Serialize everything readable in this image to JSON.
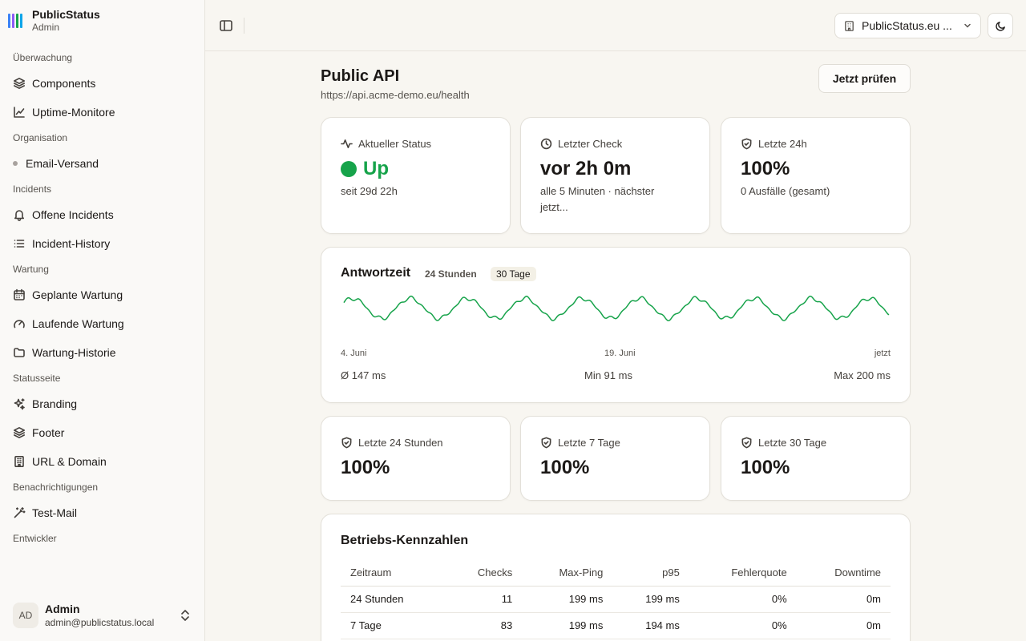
{
  "brand": {
    "title": "PublicStatus",
    "subtitle": "Admin",
    "logo_colors": [
      "#3b82f6",
      "#8b5cf6",
      "#16a34a",
      "#0ea5e9"
    ]
  },
  "sidebar": {
    "groups": [
      {
        "label": "Überwachung",
        "items": [
          {
            "label": "Components",
            "icon": "layers-icon"
          },
          {
            "label": "Uptime-Monitore",
            "icon": "line-chart-icon"
          }
        ]
      },
      {
        "label": "Organisation",
        "items": [
          {
            "label": "Email-Versand",
            "icon": "dot-icon"
          }
        ]
      },
      {
        "label": "Incidents",
        "items": [
          {
            "label": "Offene Incidents",
            "icon": "bell-icon"
          },
          {
            "label": "Incident-History",
            "icon": "list-icon"
          }
        ]
      },
      {
        "label": "Wartung",
        "items": [
          {
            "label": "Geplante Wartung",
            "icon": "calendar-icon"
          },
          {
            "label": "Laufende Wartung",
            "icon": "gauge-icon"
          },
          {
            "label": "Wartung-Historie",
            "icon": "folder-icon"
          }
        ]
      },
      {
        "label": "Statusseite",
        "items": [
          {
            "label": "Branding",
            "icon": "sparkles-icon"
          },
          {
            "label": "Footer",
            "icon": "layers-icon"
          },
          {
            "label": "URL & Domain",
            "icon": "building-icon"
          }
        ]
      },
      {
        "label": "Benachrichtigungen",
        "items": [
          {
            "label": "Test-Mail",
            "icon": "wand-icon"
          }
        ]
      },
      {
        "label": "Entwickler",
        "items": []
      }
    ]
  },
  "user": {
    "initials": "AD",
    "name": "Admin",
    "email": "admin@publicstatus.local"
  },
  "topbar": {
    "tenant": "PublicStatus.eu ..."
  },
  "monitor": {
    "title": "Public API",
    "url": "https://api.acme-demo.eu/health",
    "check_button": "Jetzt prüfen"
  },
  "stats": [
    {
      "label": "Aktueller Status",
      "icon": "activity-icon",
      "value": "Up",
      "sub": "seit 29d 22h",
      "color": "#16a34a"
    },
    {
      "label": "Letzter Check",
      "icon": "clock-icon",
      "value": "vor 2h 0m",
      "sub": "alle 5 Minuten · nächster jetzt..."
    },
    {
      "label": "Letzte 24h",
      "icon": "shield-check-icon",
      "value": "100%",
      "sub": "0 Ausfälle (gesamt)"
    }
  ],
  "chart": {
    "title": "Antwortzeit",
    "tabs": [
      "24 Stunden",
      "30 Tage"
    ],
    "active_tab": "30 Tage",
    "x_labels": [
      "4. Juni",
      "19. Juni",
      "jetzt"
    ],
    "avg": "Ø 147 ms",
    "min": "Min 91 ms",
    "max": "Max 200 ms",
    "line_color": "#16a34a"
  },
  "chart_data": {
    "type": "line",
    "title": "Antwortzeit",
    "x": [
      0,
      1,
      2,
      3,
      4,
      5,
      6,
      7,
      8,
      9,
      10,
      11,
      12,
      13,
      14,
      15,
      16,
      17,
      18,
      19,
      20,
      21,
      22,
      23,
      24,
      25,
      26,
      27,
      28,
      29,
      30,
      31,
      32,
      33,
      34,
      35,
      36,
      37,
      38,
      39,
      40,
      41,
      42,
      43,
      44,
      45,
      46,
      47,
      48,
      49,
      50,
      51,
      52,
      53,
      54,
      55,
      56,
      57,
      58,
      59,
      60,
      61,
      62,
      63,
      64,
      65,
      66,
      67,
      68,
      69,
      70,
      71,
      72,
      73,
      74,
      75,
      76,
      77,
      78,
      79,
      80,
      81,
      82,
      83,
      84,
      85,
      86,
      87,
      88,
      89,
      90,
      91,
      92,
      93,
      94,
      95,
      96,
      97,
      98,
      99,
      100,
      101,
      102,
      103,
      104,
      105,
      106,
      107,
      108,
      109,
      110,
      111,
      112,
      113,
      114,
      115,
      116,
      117,
      118,
      119,
      120,
      121,
      122,
      123,
      124,
      125,
      126,
      127,
      128,
      129,
      130,
      131,
      132,
      133,
      134,
      135,
      136,
      137,
      138,
      139,
      140,
      141,
      142,
      143,
      144,
      145,
      146,
      147,
      148,
      149,
      150,
      151,
      152,
      153,
      154,
      155,
      156,
      157,
      158,
      159,
      160,
      161,
      162,
      163,
      164,
      165,
      166,
      167,
      168,
      169,
      170,
      171,
      172,
      173,
      174,
      175,
      176,
      177,
      178,
      179,
      180,
      181,
      182,
      183,
      184,
      185,
      186,
      187,
      188,
      189,
      190,
      191,
      192,
      193,
      194,
      195,
      196,
      197,
      198,
      199,
      200,
      201,
      202,
      203,
      204,
      205,
      206,
      207,
      208,
      209,
      210,
      211,
      212,
      213,
      214,
      215,
      216,
      217,
      218,
      219,
      220,
      221,
      222,
      223,
      224,
      225,
      226,
      227,
      228,
      229,
      230,
      231,
      232,
      233,
      234,
      235,
      236,
      237,
      238,
      239,
      240,
      241,
      242,
      243,
      244,
      245,
      246,
      247,
      248,
      249,
      250,
      251,
      252,
      253,
      254,
      255,
      256,
      257,
      258,
      259,
      260,
      261,
      262,
      263,
      264,
      265,
      266,
      267,
      268,
      269,
      270,
      271,
      272,
      273,
      274,
      275,
      276,
      277,
      278,
      279,
      280,
      281,
      282,
      283,
      284,
      285,
      286,
      287,
      288,
      289,
      290,
      291,
      292,
      293,
      294,
      295,
      296,
      297,
      298,
      299,
      300,
      301,
      302,
      303,
      304,
      305,
      306,
      307,
      308,
      309,
      310,
      311,
      312,
      313,
      314,
      315,
      316,
      317,
      318,
      319,
      320,
      321,
      322,
      323,
      324,
      325,
      326,
      327,
      328,
      329,
      330,
      331,
      332,
      333,
      334,
      335,
      336,
      337,
      338,
      339,
      340,
      341,
      342,
      343,
      344,
      345,
      346,
      347,
      348,
      349,
      350,
      351,
      352,
      353,
      354,
      355,
      356,
      357,
      358,
      359,
      360,
      361,
      362,
      363,
      364,
      365,
      366,
      367,
      368,
      369,
      370,
      371,
      372,
      373,
      374,
      375,
      376,
      377,
      378,
      379,
      380,
      381,
      382,
      383,
      384,
      385,
      386,
      387,
      388,
      389,
      390,
      391,
      392,
      393,
      394,
      395,
      396,
      397,
      398,
      399,
      400,
      401,
      402,
      403,
      404,
      405,
      406,
      407,
      408,
      409,
      410,
      411,
      412,
      413,
      414,
      415,
      416,
      417,
      418,
      419,
      420,
      421,
      422,
      423,
      424,
      425,
      426,
      427,
      428,
      429,
      430,
      431,
      432,
      433,
      434,
      435,
      436,
      437,
      438,
      439,
      440,
      441,
      442,
      443,
      444,
      445,
      446,
      447,
      448,
      449,
      450,
      451,
      452,
      453,
      454,
      455,
      456,
      457,
      458,
      459,
      460,
      461,
      462,
      463,
      464,
      465,
      466,
      467,
      468,
      469,
      470,
      471,
      472,
      473,
      474,
      475,
      476,
      477,
      478,
      479,
      480,
      481,
      482,
      483,
      484,
      485,
      486,
      487,
      488,
      489,
      490,
      491,
      492,
      493,
      494,
      495,
      496,
      497,
      498,
      499,
      500,
      501,
      502,
      503,
      504,
      505,
      506,
      507,
      508,
      509,
      510,
      511,
      512,
      513,
      514,
      515,
      516,
      517,
      518,
      519,
      520,
      521,
      522,
      523,
      524,
      525,
      526,
      527,
      528,
      529,
      530,
      531,
      532,
      533,
      534,
      535,
      536,
      537,
      538,
      539,
      540,
      541,
      542,
      543,
      544,
      545,
      546,
      547,
      548,
      549,
      550,
      551,
      552,
      553,
      554,
      555,
      556,
      557,
      558,
      559,
      560,
      561,
      562,
      563,
      564,
      565,
      566,
      567,
      568,
      569,
      570,
      571,
      572,
      573,
      574,
      575,
      576,
      577,
      578,
      579,
      580,
      581,
      582,
      583,
      584,
      585,
      586,
      587,
      588,
      589,
      590,
      591,
      592,
      593,
      594,
      595,
      596,
      597,
      598,
      599,
      600,
      601,
      602,
      603,
      604,
      605,
      606,
      607,
      608,
      609,
      610,
      611,
      612,
      613,
      614,
      615,
      616,
      617,
      618,
      619,
      620,
      621,
      622,
      623,
      624,
      625,
      626,
      627,
      628,
      629,
      630,
      631,
      632,
      633,
      634,
      635,
      636,
      637,
      638,
      639,
      640,
      641,
      642,
      643,
      644,
      645,
      646,
      647,
      648,
      649,
      650,
      651,
      652,
      653,
      654,
      655,
      656,
      657,
      658,
      659,
      660,
      661,
      662,
      663,
      664,
      665,
      666,
      667,
      668,
      669,
      670,
      671,
      672,
      673,
      674,
      675,
      676,
      677,
      678,
      679,
      680,
      681,
      682,
      683,
      684,
      685,
      686,
      687,
      688,
      689,
      690,
      691,
      692,
      693,
      694,
      695,
      696,
      697,
      698,
      699,
      700,
      701,
      702,
      703,
      704,
      705,
      706,
      707,
      708,
      709,
      710,
      711,
      712,
      713,
      714,
      715,
      716,
      717,
      718,
      719,
      720
    ],
    "wave": {
      "periods": 9.5,
      "min_ms": 91,
      "max_ms": 200,
      "avg_ms": 147
    },
    "ylim": [
      60,
      230
    ]
  },
  "uptime": [
    {
      "label": "Letzte 24 Stunden",
      "value": "100%"
    },
    {
      "label": "Letzte 7 Tage",
      "value": "100%"
    },
    {
      "label": "Letzte 30 Tage",
      "value": "100%"
    }
  ],
  "kpi": {
    "title": "Betriebs-Kennzahlen",
    "headers": [
      "Zeitraum",
      "Checks",
      "Max-Ping",
      "p95",
      "Fehlerquote",
      "Downtime"
    ],
    "rows": [
      [
        "24 Stunden",
        "11",
        "199 ms",
        "199 ms",
        "0%",
        "0m"
      ],
      [
        "7 Tage",
        "83",
        "199 ms",
        "194 ms",
        "0%",
        "0m"
      ]
    ]
  }
}
